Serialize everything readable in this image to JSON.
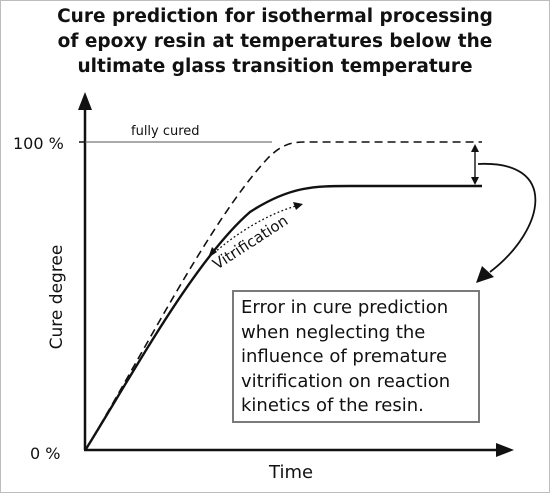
{
  "title": {
    "lines": [
      "Cure prediction for isothermal processing",
      "of epoxy resin at temperatures below the",
      "ultimate glass transition temperature"
    ]
  },
  "axes": {
    "y_label": "Cure degree",
    "x_label": "Time",
    "y_tick_top": "100 %",
    "y_tick_bottom": "0 %"
  },
  "annotations": {
    "fully_cured": "fully cured",
    "vitrification": "Vitrification"
  },
  "note": {
    "lines": [
      "Error in cure prediction",
      "when neglecting the",
      "influence of premature",
      "vitrification on reaction",
      "kinetics of the resin."
    ]
  }
}
